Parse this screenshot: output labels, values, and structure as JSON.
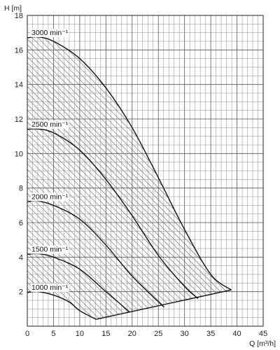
{
  "chart_data": {
    "type": "line",
    "xlabel": "Q [m³/h]",
    "ylabel": "H [m]",
    "xlim": [
      0,
      45
    ],
    "ylim": [
      0,
      18
    ],
    "x_ticks": [
      "0",
      "5",
      "10",
      "15",
      "20",
      "25",
      "30",
      "35",
      "40",
      "45"
    ],
    "y_ticks": [
      "2",
      "4",
      "6",
      "8",
      "10",
      "12",
      "14",
      "16",
      "18"
    ],
    "grid": true,
    "hatched_operating_area": true,
    "series": [
      {
        "name": "3000 min⁻¹",
        "x": [
          0,
          2,
          5,
          10,
          15,
          20,
          25,
          30,
          35,
          38.9
        ],
        "y": [
          16.7,
          16.75,
          16.5,
          15.5,
          13.8,
          11.5,
          8.6,
          5.6,
          3.0,
          2.1
        ]
      },
      {
        "name": "2500 min⁻¹",
        "x": [
          0,
          2,
          5,
          10,
          15,
          20,
          25,
          30,
          32.6
        ],
        "y": [
          11.4,
          11.42,
          11.2,
          10.2,
          8.5,
          6.4,
          4.1,
          2.3,
          1.6
        ]
      },
      {
        "name": "2000 min⁻¹",
        "x": [
          0,
          2,
          5,
          10,
          15,
          20,
          26.1
        ],
        "y": [
          7.2,
          7.25,
          7.0,
          6.2,
          4.7,
          2.9,
          1.1
        ]
      },
      {
        "name": "1500 min⁻¹",
        "x": [
          0,
          2,
          5,
          10,
          15,
          19.6
        ],
        "y": [
          4.15,
          4.2,
          4.0,
          3.3,
          2.0,
          0.8
        ]
      },
      {
        "name": "1000 min⁻¹",
        "x": [
          0,
          2,
          5,
          8,
          10,
          13.1
        ],
        "y": [
          1.95,
          2.0,
          1.8,
          1.4,
          0.9,
          0.4
        ]
      }
    ]
  }
}
